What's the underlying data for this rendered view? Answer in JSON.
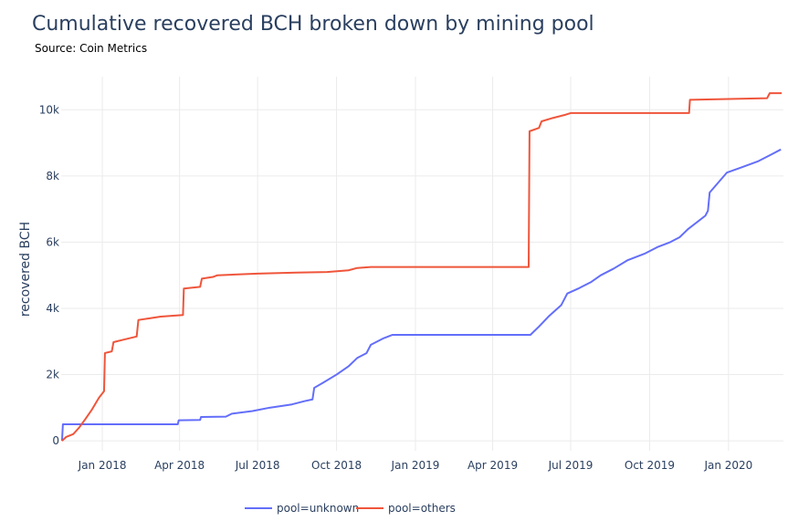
{
  "chart_data": {
    "type": "line",
    "title": "Cumulative recovered BCH broken down by mining pool",
    "subtitle": "Source: Coin Metrics",
    "ylabel": "recovered BCH",
    "xlabel": "",
    "ylim": [
      -300,
      11000
    ],
    "xlim": [
      "2017-11-14",
      "2020-03-05"
    ],
    "grid": true,
    "legend_position": "bottom-center",
    "x_ticks": [
      {
        "date": "2018-01-01",
        "label": "Jan 2018"
      },
      {
        "date": "2018-04-01",
        "label": "Apr 2018"
      },
      {
        "date": "2018-07-01",
        "label": "Jul 2018"
      },
      {
        "date": "2018-10-01",
        "label": "Oct 2018"
      },
      {
        "date": "2019-01-01",
        "label": "Jan 2019"
      },
      {
        "date": "2019-04-01",
        "label": "Apr 2019"
      },
      {
        "date": "2019-07-01",
        "label": "Jul 2019"
      },
      {
        "date": "2019-10-01",
        "label": "Oct 2019"
      },
      {
        "date": "2020-01-01",
        "label": "Jan 2020"
      }
    ],
    "y_ticks": [
      {
        "value": 0,
        "label": "0"
      },
      {
        "value": 2000,
        "label": "2k"
      },
      {
        "value": 4000,
        "label": "4k"
      },
      {
        "value": 6000,
        "label": "6k"
      },
      {
        "value": 8000,
        "label": "8k"
      },
      {
        "value": 10000,
        "label": "10k"
      }
    ],
    "series": [
      {
        "name": "pool=unknown",
        "color": "#636efa",
        "points": [
          [
            "2017-11-15",
            0
          ],
          [
            "2017-11-16",
            500
          ],
          [
            "2018-03-30",
            500
          ],
          [
            "2018-03-31",
            620
          ],
          [
            "2018-04-25",
            630
          ],
          [
            "2018-04-26",
            720
          ],
          [
            "2018-05-25",
            730
          ],
          [
            "2018-06-01",
            820
          ],
          [
            "2018-06-25",
            900
          ],
          [
            "2018-07-15",
            1000
          ],
          [
            "2018-08-10",
            1100
          ],
          [
            "2018-08-25",
            1200
          ],
          [
            "2018-09-03",
            1250
          ],
          [
            "2018-09-05",
            1600
          ],
          [
            "2018-09-15",
            1750
          ],
          [
            "2018-10-01",
            2000
          ],
          [
            "2018-10-15",
            2250
          ],
          [
            "2018-10-25",
            2500
          ],
          [
            "2018-11-05",
            2650
          ],
          [
            "2018-11-10",
            2900
          ],
          [
            "2018-11-25",
            3100
          ],
          [
            "2018-12-05",
            3200
          ],
          [
            "2019-05-15",
            3200
          ],
          [
            "2019-05-25",
            3450
          ],
          [
            "2019-06-05",
            3750
          ],
          [
            "2019-06-20",
            4100
          ],
          [
            "2019-06-27",
            4450
          ],
          [
            "2019-07-10",
            4600
          ],
          [
            "2019-07-25",
            4800
          ],
          [
            "2019-08-05",
            5000
          ],
          [
            "2019-08-20",
            5200
          ],
          [
            "2019-09-05",
            5450
          ],
          [
            "2019-09-25",
            5650
          ],
          [
            "2019-10-10",
            5850
          ],
          [
            "2019-10-25",
            6000
          ],
          [
            "2019-11-05",
            6150
          ],
          [
            "2019-11-15",
            6400
          ],
          [
            "2019-11-25",
            6600
          ],
          [
            "2019-12-05",
            6800
          ],
          [
            "2019-12-08",
            6950
          ],
          [
            "2019-12-10",
            7500
          ],
          [
            "2019-12-20",
            7800
          ],
          [
            "2019-12-30",
            8100
          ],
          [
            "2020-01-15",
            8250
          ],
          [
            "2020-02-05",
            8450
          ],
          [
            "2020-02-20",
            8650
          ],
          [
            "2020-03-02",
            8800
          ]
        ]
      },
      {
        "name": "pool=others",
        "color": "#ef553b",
        "points": [
          [
            "2017-11-15",
            0
          ],
          [
            "2017-11-20",
            120
          ],
          [
            "2017-11-28",
            200
          ],
          [
            "2017-12-05",
            400
          ],
          [
            "2017-12-12",
            650
          ],
          [
            "2017-12-20",
            950
          ],
          [
            "2017-12-28",
            1300
          ],
          [
            "2018-01-03",
            1500
          ],
          [
            "2018-01-04",
            2650
          ],
          [
            "2018-01-12",
            2700
          ],
          [
            "2018-01-14",
            2980
          ],
          [
            "2018-01-25",
            3050
          ],
          [
            "2018-02-10",
            3150
          ],
          [
            "2018-02-12",
            3650
          ],
          [
            "2018-02-25",
            3700
          ],
          [
            "2018-03-10",
            3750
          ],
          [
            "2018-04-05",
            3800
          ],
          [
            "2018-04-06",
            4600
          ],
          [
            "2018-04-25",
            4650
          ],
          [
            "2018-04-27",
            4900
          ],
          [
            "2018-05-10",
            4950
          ],
          [
            "2018-05-15",
            5000
          ],
          [
            "2018-07-01",
            5050
          ],
          [
            "2018-08-15",
            5080
          ],
          [
            "2018-09-20",
            5100
          ],
          [
            "2018-10-15",
            5150
          ],
          [
            "2018-10-25",
            5220
          ],
          [
            "2018-11-10",
            5250
          ],
          [
            "2019-05-13",
            5250
          ],
          [
            "2019-05-14",
            9350
          ],
          [
            "2019-05-25",
            9450
          ],
          [
            "2019-05-28",
            9650
          ],
          [
            "2019-06-10",
            9750
          ],
          [
            "2019-06-25",
            9850
          ],
          [
            "2019-07-01",
            9900
          ],
          [
            "2019-11-16",
            9900
          ],
          [
            "2019-11-17",
            10300
          ],
          [
            "2020-02-15",
            10350
          ],
          [
            "2020-02-18",
            10500
          ],
          [
            "2020-03-03",
            10500
          ]
        ]
      }
    ]
  }
}
